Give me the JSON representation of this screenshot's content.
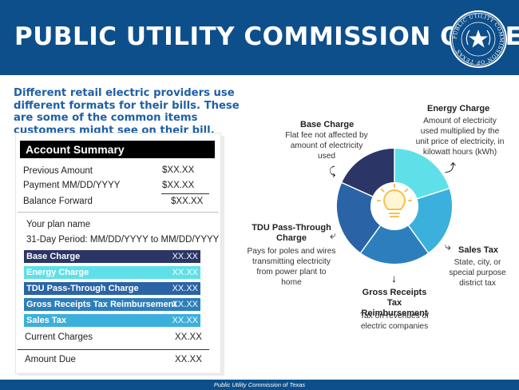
{
  "header": {
    "title": "PUBLIC UTILITY COMMISSION OF TEXAS",
    "seal_text": "PUBLIC UTILITY COMMISSION OF TEXAS"
  },
  "intro": "Different retail electric providers use different formats for their bills. These are some of the common items customers might see on their bill.",
  "bill": {
    "heading": "Account Summary",
    "summary": [
      {
        "label": "Previous Amount",
        "value": "$XX.XX"
      },
      {
        "label": "Payment MM/DD/YYYY",
        "value": "$XX.XX"
      },
      {
        "label": "Balance Forward",
        "value": "$XX.XX"
      }
    ],
    "plan_name": "Your plan name",
    "period": "31-Day Period: MM/DD/YYYY to MM/DD/YYYY",
    "charges": [
      {
        "label": "Base Charge",
        "value": "XX.XX",
        "color": "#2b3566"
      },
      {
        "label": "Energy Charge",
        "value": "XX.XX",
        "color": "#5fe0e8"
      },
      {
        "label": "TDU Pass-Through Charge",
        "value": "XX.XX",
        "color": "#2a64a6"
      },
      {
        "label": "Gross Receipts Tax Reimbursement",
        "value": "XX.XX",
        "color": "#2c7fbc"
      },
      {
        "label": "Sales Tax",
        "value": "XX.XX",
        "color": "#3bb0dc"
      }
    ],
    "current_charges": {
      "label": "Current Charges",
      "value": "XX.XX"
    },
    "amount_due": {
      "label": "Amount Due",
      "value": "XX.XX"
    }
  },
  "diagram": {
    "base": {
      "title": "Base Charge",
      "desc": "Flat fee not affected by amount of electricity used"
    },
    "energy": {
      "title": "Energy Charge",
      "desc": "Amount of electricity used multiplied by the unit price of electricity, in kilowatt hours (kWh)"
    },
    "tdu": {
      "title": "TDU Pass-Through Charge",
      "desc": "Pays for poles and wires transmitting electricity from power plant to home"
    },
    "gross": {
      "title": "Gross Receipts Tax Reimbursement",
      "desc": "Tax on revenues of electric companies"
    },
    "sales": {
      "title": "Sales Tax",
      "desc": "State, city, or special purpose district tax"
    },
    "center_icon": "lightbulb-icon",
    "segment_colors": {
      "base": "#2b3566",
      "energy": "#5fe0e8",
      "sales": "#3bb0dc",
      "gross": "#2c7fbc",
      "tdu": "#2a64a6"
    }
  },
  "footer": "Public Utility Commission of Texas"
}
